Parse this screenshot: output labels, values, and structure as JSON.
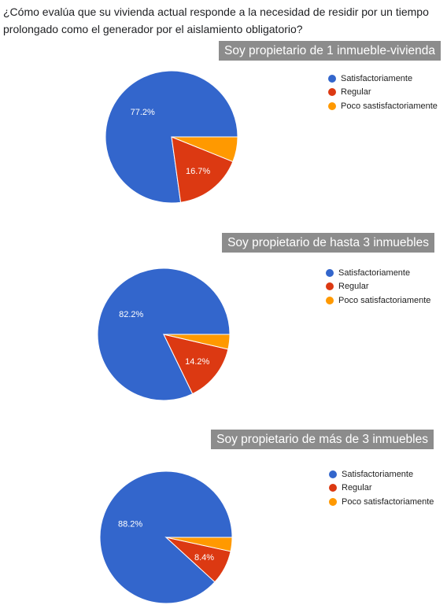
{
  "question": "¿Cómo evalúa que su vivienda actual responde a la necesidad de residir por un tiempo prolongado como el generador por el aislamiento obligatorio?",
  "colors": {
    "satisfactoriamente": "#3366cc",
    "regular": "#dc3912",
    "poco": "#ff9900"
  },
  "chart_data": [
    {
      "type": "pie",
      "title": "Soy propietario de 1 inmueble-vivienda",
      "labels": [
        "Satisfactoriamente",
        "Regular",
        "Poco sastisfactoriamente"
      ],
      "values": [
        77.2,
        16.7,
        6.1
      ],
      "data_labels": [
        "77.2%",
        "16.7%",
        ""
      ],
      "colors": [
        "#3366cc",
        "#dc3912",
        "#ff9900"
      ],
      "legend_position": "right"
    },
    {
      "type": "pie",
      "title": "Soy propietario de hasta 3 inmuebles",
      "labels": [
        "Satisfactoriamente",
        "Regular",
        "Poco satisfactoriamente"
      ],
      "values": [
        82.2,
        14.2,
        3.6
      ],
      "data_labels": [
        "82.2%",
        "14.2%",
        ""
      ],
      "colors": [
        "#3366cc",
        "#dc3912",
        "#ff9900"
      ],
      "legend_position": "right"
    },
    {
      "type": "pie",
      "title": "Soy propietario de más de 3 inmuebles",
      "labels": [
        "Satisfactoriamente",
        "Regular",
        "Poco satisfactoriamente"
      ],
      "values": [
        88.2,
        8.4,
        3.4
      ],
      "data_labels": [
        "88.2%",
        "8.4%",
        ""
      ],
      "colors": [
        "#3366cc",
        "#dc3912",
        "#ff9900"
      ],
      "legend_position": "right"
    }
  ]
}
